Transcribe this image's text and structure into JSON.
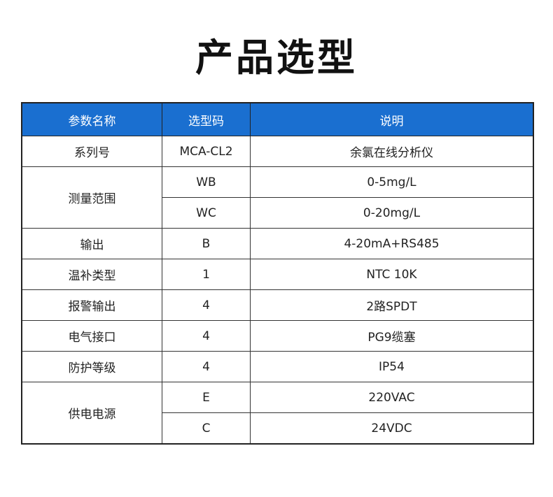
{
  "title": "产品选型",
  "table": {
    "headers": [
      "参数名称",
      "选型码",
      "说明"
    ],
    "header_bg": "#1a6fd0",
    "rows": [
      {
        "param": "系列号",
        "options": [
          {
            "code": "MCA-CL2",
            "desc": "余氯在线分析仪"
          }
        ]
      },
      {
        "param": "测量范围",
        "options": [
          {
            "code": "WB",
            "desc": "0-5mg/L"
          },
          {
            "code": "WC",
            "desc": "0-20mg/L"
          }
        ]
      },
      {
        "param": "输出",
        "options": [
          {
            "code": "B",
            "desc": "4-20mA+RS485"
          }
        ]
      },
      {
        "param": "温补类型",
        "options": [
          {
            "code": "1",
            "desc": "NTC 10K"
          }
        ]
      },
      {
        "param": "报警输出",
        "options": [
          {
            "code": "4",
            "desc": "2路SPDT"
          }
        ]
      },
      {
        "param": "电气接口",
        "options": [
          {
            "code": "4",
            "desc": "PG9缆塞"
          }
        ]
      },
      {
        "param": "防护等级",
        "options": [
          {
            "code": "4",
            "desc": "IP54"
          }
        ]
      },
      {
        "param": "供电电源",
        "options": [
          {
            "code": "E",
            "desc": "220VAC"
          },
          {
            "code": "C",
            "desc": "24VDC"
          }
        ]
      }
    ]
  }
}
